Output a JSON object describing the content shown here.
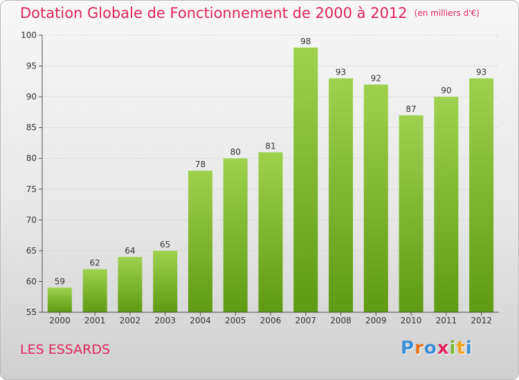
{
  "page": {
    "title": "Dotation Globale de Fonctionnement de 2000 à 2012",
    "unit": "(en milliers d'€)",
    "commune": "LES ESSARDS",
    "logo": "Proxiti"
  },
  "colors": {
    "title": "#e0235c",
    "bar_top": "#9ed24e",
    "bar_bottom": "#5e9a12",
    "axis": "#4d4d4d",
    "grid": "#d0d0d0"
  },
  "chart_data": {
    "type": "bar",
    "title": "Dotation Globale de Fonctionnement de 2000 à 2012",
    "subtitle": "(en milliers d'€)",
    "categories": [
      "2000",
      "2001",
      "2002",
      "2003",
      "2004",
      "2005",
      "2006",
      "2007",
      "2008",
      "2009",
      "2010",
      "2011",
      "2012"
    ],
    "values": [
      59,
      62,
      64,
      65,
      78,
      80,
      81,
      98,
      93,
      92,
      87,
      90,
      93
    ],
    "ylim": [
      55,
      100
    ],
    "yticks": [
      55,
      60,
      65,
      70,
      75,
      80,
      85,
      90,
      95,
      100
    ],
    "xlabel": "",
    "ylabel": "",
    "grid": true,
    "data_labels": true
  }
}
